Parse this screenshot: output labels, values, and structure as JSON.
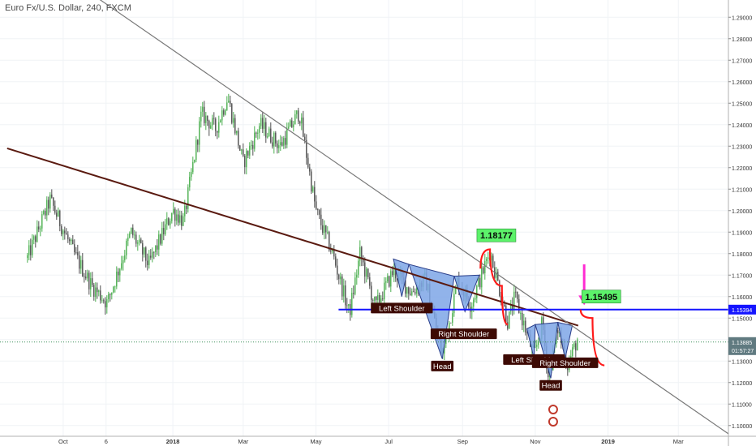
{
  "title": "Euro Fx/U.S. Dollar, 240, FXCM",
  "colors": {
    "candle_up": "#4caf50",
    "candle_down": "#505050",
    "blue_line": "#1414ff",
    "trend_brown": "#5a1a10",
    "trend_gray": "#777777",
    "pattern_fill": "#7ea6e6",
    "projection": "#ff1a1a",
    "arrow": "#ff2bd2",
    "green_label": "#5cf26a",
    "label_bg": "#3d0a04",
    "current_price_bg": "#607a80",
    "grid": "#f0f3f6"
  },
  "chart_data": {
    "type": "candlestick",
    "ylim": [
      1.095,
      1.295
    ],
    "y_ticks": [
      "1.10000",
      "1.11000",
      "1.12000",
      "1.13000",
      "1.14000",
      "1.15000",
      "1.16000",
      "1.17000",
      "1.18000",
      "1.19000",
      "1.20000",
      "1.21000",
      "1.22000",
      "1.23000",
      "1.24000",
      "1.25000",
      "1.26000",
      "1.27000",
      "1.28000",
      "1.29000"
    ],
    "x_ticks": [
      "Oct",
      "6",
      "2018",
      "Mar",
      "May",
      "Jul",
      "Sep",
      "Nov",
      "2019",
      "Mar"
    ],
    "price_path": [
      {
        "t": "2017-09-01",
        "v": 1.178
      },
      {
        "t": "2017-09-20",
        "v": 1.205
      },
      {
        "t": "2017-10-10",
        "v": 1.18
      },
      {
        "t": "2017-10-25",
        "v": 1.165
      },
      {
        "t": "2017-11-07",
        "v": 1.157
      },
      {
        "t": "2017-11-27",
        "v": 1.19
      },
      {
        "t": "2017-12-12",
        "v": 1.175
      },
      {
        "t": "2018-01-01",
        "v": 1.2
      },
      {
        "t": "2018-01-10",
        "v": 1.195
      },
      {
        "t": "2018-01-25",
        "v": 1.245
      },
      {
        "t": "2018-02-06",
        "v": 1.238
      },
      {
        "t": "2018-02-16",
        "v": 1.253
      },
      {
        "t": "2018-03-01",
        "v": 1.222
      },
      {
        "t": "2018-03-15",
        "v": 1.24
      },
      {
        "t": "2018-04-01",
        "v": 1.23
      },
      {
        "t": "2018-04-17",
        "v": 1.246
      },
      {
        "t": "2018-05-01",
        "v": 1.2
      },
      {
        "t": "2018-05-15",
        "v": 1.18
      },
      {
        "t": "2018-05-29",
        "v": 1.152
      },
      {
        "t": "2018-06-07",
        "v": 1.18
      },
      {
        "t": "2018-06-20",
        "v": 1.155
      },
      {
        "t": "2018-07-05",
        "v": 1.172
      },
      {
        "t": "2018-07-20",
        "v": 1.162
      },
      {
        "t": "2018-08-01",
        "v": 1.168
      },
      {
        "t": "2018-08-15",
        "v": 1.132
      },
      {
        "t": "2018-08-28",
        "v": 1.168
      },
      {
        "t": "2018-09-08",
        "v": 1.156
      },
      {
        "t": "2018-09-24",
        "v": 1.181
      },
      {
        "t": "2018-10-09",
        "v": 1.148
      },
      {
        "t": "2018-10-15",
        "v": 1.16
      },
      {
        "t": "2018-10-31",
        "v": 1.132
      },
      {
        "t": "2018-11-07",
        "v": 1.148
      },
      {
        "t": "2018-11-12",
        "v": 1.122
      },
      {
        "t": "2018-11-20",
        "v": 1.145
      },
      {
        "t": "2018-11-28",
        "v": 1.128
      },
      {
        "t": "2018-12-07",
        "v": 1.141
      }
    ],
    "horizontal_line": {
      "value": 1.15394,
      "label": "1.15394"
    },
    "current_price": {
      "value": 1.13885,
      "label": "1.13885",
      "countdown": "01:57:27"
    },
    "trendlines": [
      {
        "name": "brown",
        "points": [
          {
            "t": "2017-08-15",
            "v": 1.229
          },
          {
            "t": "2018-12-07",
            "v": 1.1465
          }
        ]
      },
      {
        "name": "gray",
        "points": [
          {
            "t": "2017-10-01",
            "v": 1.31
          },
          {
            "t": "2019-04-15",
            "v": 1.095
          }
        ]
      }
    ],
    "patterns": [
      {
        "tri": [
          [
            {
              "t": "2018-07-05",
              "v": 1.1775
            },
            {
              "t": "2018-07-18",
              "v": 1.175
            },
            {
              "t": "2018-07-12",
              "v": 1.16
            }
          ],
          [
            {
              "t": "2018-07-18",
              "v": 1.175
            },
            {
              "t": "2018-08-25",
              "v": 1.1695
            },
            {
              "t": "2018-08-15",
              "v": 1.131
            }
          ],
          [
            {
              "t": "2018-08-25",
              "v": 1.1695
            },
            {
              "t": "2018-09-15",
              "v": 1.17
            },
            {
              "t": "2018-09-03",
              "v": 1.153
            }
          ]
        ]
      },
      {
        "tri": [
          [
            {
              "t": "2018-10-25",
              "v": 1.145
            },
            {
              "t": "2018-11-01",
              "v": 1.147
            },
            {
              "t": "2018-10-31",
              "v": 1.131
            }
          ],
          [
            {
              "t": "2018-11-01",
              "v": 1.147
            },
            {
              "t": "2018-11-20",
              "v": 1.148
            },
            {
              "t": "2018-11-14",
              "v": 1.122
            }
          ],
          [
            {
              "t": "2018-11-20",
              "v": 1.148
            },
            {
              "t": "2018-12-02",
              "v": 1.1465
            },
            {
              "t": "2018-11-26",
              "v": 1.131
            }
          ]
        ]
      }
    ],
    "projections": [
      [
        {
          "t": "2018-09-16",
          "v": 1.173
        },
        {
          "t": "2018-09-24",
          "v": 1.182
        },
        {
          "t": "2018-10-04",
          "v": 1.165
        },
        {
          "t": "2018-10-09",
          "v": 1.147
        }
      ],
      [
        {
          "t": "2018-12-09",
          "v": 1.154
        },
        {
          "t": "2018-12-19",
          "v": 1.15
        },
        {
          "t": "2018-12-29",
          "v": 1.128
        }
      ]
    ],
    "arrow": {
      "t": "2018-12-12",
      "from": 1.175,
      "to": 1.156
    },
    "price_labels": [
      {
        "text": "1.18177",
        "t": "2018-09-28",
        "v": 1.1885
      },
      {
        "text": "1.15495",
        "t": "2018-12-25",
        "v": 1.16
      }
    ],
    "annotations": [
      {
        "text": "Left Shoulder",
        "t": "2018-07-12",
        "v": 1.1545
      },
      {
        "text": "Right Shoulder",
        "t": "2018-09-02",
        "v": 1.1425
      },
      {
        "text": "Head",
        "t": "2018-08-15",
        "v": 1.1275
      },
      {
        "text": "Left Shoulder",
        "t": "2018-10-31",
        "v": 1.1305
      },
      {
        "text": "Right Shoulder",
        "t": "2018-11-26",
        "v": 1.129
      },
      {
        "text": "Head",
        "t": "2018-11-14",
        "v": 1.1185
      }
    ]
  }
}
